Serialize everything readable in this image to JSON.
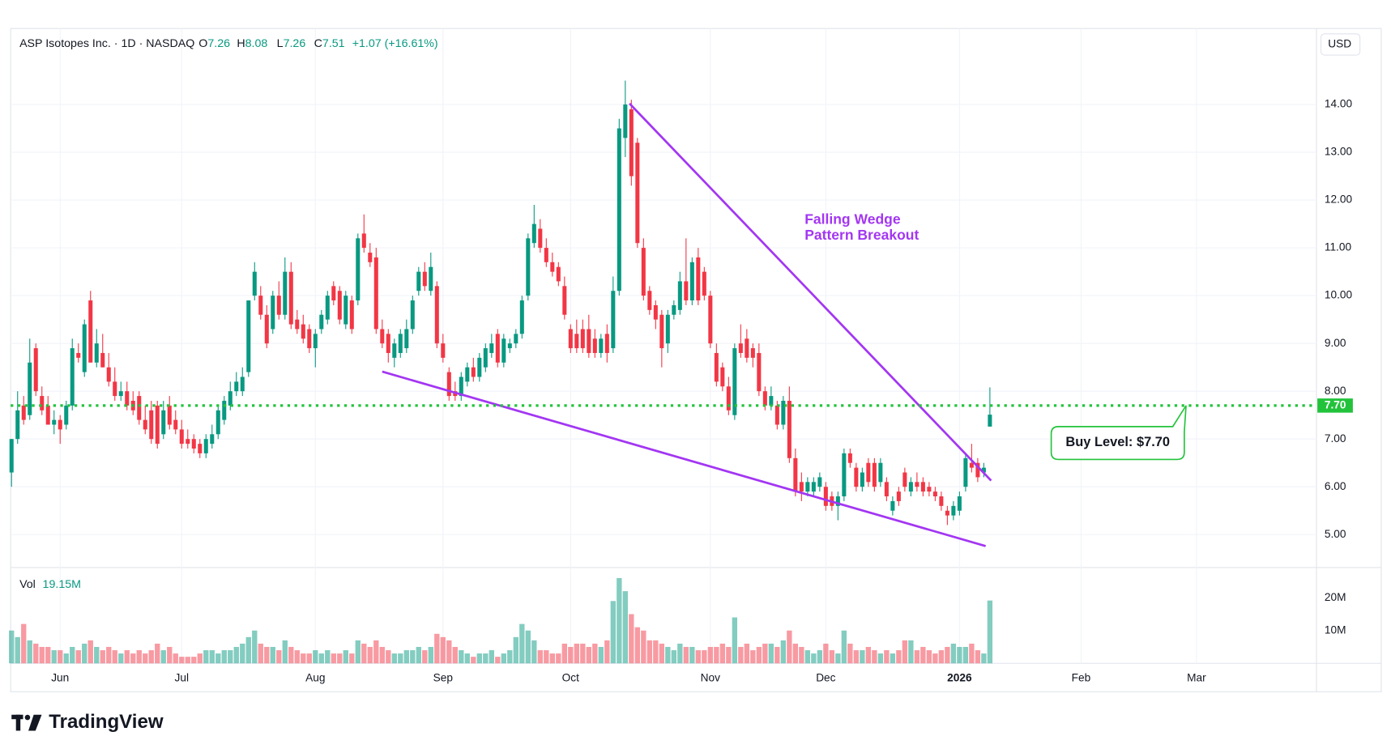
{
  "chart_data": {
    "type": "candlestick",
    "symbol_label": "ASP Isotopes Inc. · 1D · NASDAQ",
    "ohlc_labels": [
      "O",
      "H",
      "L",
      "C"
    ],
    "change_label": "+1.07 (+16.61%)",
    "currency": "USD",
    "volume_label": "Vol",
    "last_volume_label": "19.15M",
    "branding": "TradingView",
    "up_color": "#089981",
    "down_color": "#f23645",
    "categories": [
      null,
      null,
      null,
      null,
      null,
      null,
      null,
      null,
      "Jun",
      null,
      null,
      null,
      null,
      null,
      null,
      null,
      null,
      null,
      null,
      null,
      null,
      null,
      null,
      null,
      null,
      null,
      null,
      null,
      "Jul",
      null,
      null,
      null,
      null,
      null,
      null,
      null,
      null,
      null,
      null,
      null,
      null,
      null,
      null,
      null,
      null,
      null,
      null,
      null,
      null,
      null,
      "Aug",
      null,
      null,
      null,
      null,
      null,
      null,
      null,
      null,
      null,
      null,
      null,
      null,
      null,
      null,
      null,
      null,
      null,
      null,
      null,
      null,
      "Sep",
      null,
      null,
      null,
      null,
      null,
      null,
      null,
      null,
      null,
      null,
      null,
      null,
      null,
      null,
      null,
      null,
      null,
      null,
      null,
      null,
      "Oct",
      null,
      null,
      null,
      null,
      null,
      null,
      null,
      null,
      null,
      null,
      null,
      null,
      null,
      null,
      null,
      null,
      null,
      null,
      null,
      null,
      null,
      null,
      "Nov",
      null,
      null,
      null,
      null,
      null,
      null,
      null,
      null,
      null,
      null,
      null,
      null,
      null,
      null,
      null,
      null,
      null,
      null,
      "Dec",
      null,
      null,
      null,
      null,
      null,
      null,
      null,
      null,
      null,
      null,
      null,
      null,
      null,
      null,
      null,
      null,
      null,
      null,
      null,
      null,
      null,
      "2026",
      null,
      null,
      null,
      null,
      null,
      null,
      null,
      null,
      null,
      null,
      null,
      null,
      null,
      null,
      null,
      null,
      null,
      null,
      null,
      "Feb",
      null,
      null,
      null,
      null,
      null,
      null,
      null,
      null,
      null,
      null,
      null,
      null,
      null,
      null,
      null,
      null,
      null,
      null,
      "Mar"
    ],
    "open": [
      6.3,
      7.0,
      7.7,
      7.5,
      8.9,
      7.9,
      7.7,
      7.3,
      7.4,
      7.3,
      7.7,
      8.8,
      8.4,
      9.9,
      8.6,
      8.8,
      8.5,
      8.2,
      7.9,
      8.0,
      7.8,
      7.9,
      7.4,
      7.6,
      7.7,
      7.1,
      7.7,
      7.4,
      7.2,
      7.0,
      7.0,
      6.9,
      6.7,
      6.9,
      7.1,
      7.4,
      7.7,
      8.0,
      8.0,
      8.4,
      10.0,
      10.0,
      9.6,
      9.3,
      10.0,
      9.6,
      10.5,
      9.5,
      9.4,
      9.3,
      8.9,
      9.3,
      9.5,
      10.2,
      10.1,
      9.4,
      9.9,
      9.9,
      11.3,
      10.9,
      10.8,
      9.3,
      9.2,
      8.7,
      8.8,
      8.9,
      9.3,
      10.1,
      10.5,
      10.1,
      10.2,
      9.0,
      8.4,
      8.0,
      7.9,
      8.2,
      8.5,
      8.3,
      8.5,
      8.8,
      9.2,
      8.6,
      8.9,
      9.0,
      9.2,
      10.0,
      11.1,
      11.4,
      11.0,
      10.7,
      10.6,
      10.2,
      9.3,
      9.2,
      9.3,
      9.3,
      9.1,
      8.8,
      9.2,
      8.9,
      10.1,
      13.3,
      13.9,
      13.2,
      11.0,
      10.1,
      9.8,
      9.6,
      9.0,
      9.6,
      9.7,
      10.3,
      9.9,
      10.8,
      10.5,
      10.0,
      8.8,
      8.5,
      8.1,
      7.5,
      9.0,
      9.1,
      8.9,
      8.8,
      8.0,
      7.7,
      7.7,
      7.3,
      7.8,
      6.6,
      6.1,
      5.9,
      5.9,
      6.0,
      6.0,
      5.8,
      5.6,
      5.8,
      6.7,
      6.4,
      6.0,
      6.5,
      6.5,
      6.1,
      6.1,
      5.5,
      5.9,
      6.3,
      5.9,
      6.1,
      6.1,
      6.0,
      5.9,
      5.8,
      5.5,
      5.4,
      5.5,
      6.0,
      6.5,
      6.5,
      6.3,
      7.26,
      null,
      null,
      null,
      null,
      null,
      null,
      null,
      null,
      null,
      null,
      null,
      null,
      null,
      null,
      null,
      null,
      null,
      null,
      null,
      null,
      null,
      null,
      null,
      null,
      null,
      null,
      null,
      null,
      null,
      null,
      null,
      null,
      null,
      null
    ],
    "high": [
      7.0,
      8.0,
      7.9,
      9.1,
      9.0,
      8.1,
      7.9,
      7.6,
      7.5,
      7.8,
      9.1,
      9.0,
      9.5,
      10.1,
      9.3,
      9.2,
      8.8,
      8.5,
      8.2,
      8.2,
      8.0,
      8.0,
      7.7,
      7.8,
      7.8,
      7.8,
      7.9,
      7.6,
      7.4,
      7.2,
      7.1,
      7.0,
      7.1,
      7.3,
      7.7,
      7.9,
      8.2,
      8.4,
      8.5,
      9.9,
      10.7,
      10.2,
      9.8,
      10.1,
      10.3,
      10.8,
      10.7,
      9.7,
      9.6,
      9.4,
      9.3,
      9.7,
      10.1,
      10.3,
      10.2,
      10.1,
      10.0,
      11.3,
      11.7,
      11.1,
      11.0,
      9.5,
      9.3,
      9.1,
      9.3,
      9.5,
      10.0,
      10.6,
      10.7,
      10.9,
      10.3,
      9.2,
      8.5,
      8.2,
      8.4,
      8.6,
      8.7,
      8.8,
      9.0,
      9.2,
      9.3,
      9.2,
      9.1,
      9.3,
      10.0,
      11.3,
      11.9,
      11.6,
      11.2,
      10.9,
      10.7,
      10.4,
      9.4,
      9.5,
      9.5,
      9.6,
      9.3,
      9.2,
      9.4,
      10.4,
      13.7,
      14.5,
      14.1,
      13.3,
      11.2,
      10.2,
      9.9,
      9.7,
      9.7,
      9.9,
      10.5,
      11.2,
      10.8,
      11.0,
      10.6,
      10.1,
      9.0,
      8.6,
      8.3,
      9.0,
      9.4,
      9.3,
      9.0,
      9.0,
      8.1,
      8.1,
      7.8,
      7.9,
      8.1,
      6.8,
      6.3,
      6.2,
      6.2,
      6.3,
      6.1,
      5.9,
      5.9,
      6.8,
      6.8,
      6.5,
      6.4,
      6.6,
      6.6,
      6.6,
      6.2,
      5.8,
      6.0,
      6.4,
      6.2,
      6.3,
      6.2,
      6.1,
      6.0,
      5.9,
      5.6,
      5.7,
      5.9,
      6.7,
      6.9,
      6.6,
      6.5,
      8.08,
      null,
      null,
      null,
      null,
      null,
      null,
      null,
      null,
      null,
      null,
      null,
      null,
      null,
      null,
      null,
      null,
      null,
      null,
      null,
      null,
      null,
      null,
      null,
      null,
      null,
      null,
      null,
      null,
      null,
      null,
      null,
      null,
      null,
      null
    ],
    "low": [
      6.0,
      6.9,
      7.3,
      7.4,
      7.9,
      7.5,
      7.3,
      7.1,
      6.9,
      7.2,
      7.6,
      8.6,
      8.3,
      8.6,
      8.5,
      8.5,
      8.1,
      7.8,
      7.8,
      7.6,
      7.5,
      7.3,
      7.1,
      6.9,
      6.8,
      7.0,
      7.2,
      7.1,
      6.8,
      6.8,
      6.7,
      6.6,
      6.6,
      6.8,
      7.0,
      7.3,
      7.6,
      7.9,
      7.9,
      8.3,
      9.9,
      9.5,
      8.9,
      9.2,
      9.5,
      9.5,
      9.3,
      9.2,
      9.0,
      8.8,
      8.5,
      9.2,
      9.4,
      9.8,
      9.4,
      9.3,
      9.2,
      9.8,
      10.9,
      10.6,
      9.2,
      8.9,
      8.6,
      8.5,
      8.7,
      8.8,
      9.2,
      10.0,
      10.1,
      10.0,
      8.9,
      8.6,
      7.8,
      7.8,
      7.8,
      8.1,
      8.2,
      8.2,
      8.4,
      8.7,
      8.5,
      8.5,
      8.8,
      8.9,
      9.1,
      9.9,
      11.0,
      10.9,
      10.6,
      10.4,
      10.2,
      9.5,
      8.8,
      8.8,
      8.8,
      8.7,
      8.7,
      8.7,
      8.6,
      8.8,
      10.0,
      12.9,
      12.3,
      11.0,
      9.9,
      9.6,
      9.3,
      8.5,
      8.8,
      9.5,
      9.6,
      9.8,
      9.8,
      9.8,
      9.9,
      8.9,
      8.1,
      8.0,
      7.5,
      7.4,
      8.7,
      8.6,
      8.5,
      7.9,
      7.6,
      7.6,
      7.2,
      7.2,
      6.5,
      5.8,
      5.7,
      5.8,
      5.8,
      5.9,
      5.5,
      5.5,
      5.3,
      5.7,
      6.4,
      5.9,
      5.9,
      6.0,
      5.9,
      6.0,
      5.7,
      5.4,
      5.6,
      5.9,
      5.8,
      5.9,
      5.8,
      5.8,
      5.7,
      5.5,
      5.2,
      5.3,
      5.4,
      5.9,
      6.3,
      6.1,
      6.2,
      7.26,
      null,
      null,
      null,
      null,
      null,
      null,
      null,
      null,
      null,
      null,
      null,
      null,
      null,
      null,
      null,
      null,
      null,
      null,
      null,
      null,
      null,
      null,
      null,
      null,
      null,
      null,
      null,
      null,
      null,
      null,
      null,
      null,
      null,
      null
    ],
    "close": [
      7.0,
      7.6,
      7.4,
      8.6,
      8.0,
      7.6,
      7.3,
      7.4,
      7.2,
      7.7,
      8.9,
      8.7,
      9.4,
      8.6,
      9.0,
      8.5,
      8.2,
      7.9,
      8.0,
      7.7,
      7.6,
      7.4,
      7.2,
      7.0,
      6.9,
      7.6,
      7.3,
      7.2,
      6.9,
      6.9,
      6.8,
      6.7,
      7.0,
      7.1,
      7.6,
      7.8,
      8.0,
      8.2,
      8.3,
      9.9,
      10.5,
      9.6,
      9.0,
      10.0,
      9.6,
      10.5,
      9.4,
      9.3,
      9.1,
      8.9,
      9.2,
      9.6,
      10.0,
      9.9,
      9.5,
      10.0,
      9.3,
      11.2,
      11.0,
      10.7,
      9.3,
      9.0,
      8.8,
      9.0,
      9.2,
      9.3,
      9.9,
      10.5,
      10.2,
      10.6,
      9.0,
      8.7,
      7.9,
      7.9,
      8.3,
      8.5,
      8.3,
      8.7,
      8.9,
      9.0,
      8.6,
      9.1,
      9.0,
      9.2,
      9.9,
      11.2,
      11.5,
      11.0,
      10.7,
      10.5,
      10.3,
      9.6,
      8.9,
      8.9,
      8.9,
      8.8,
      8.8,
      9.1,
      8.8,
      10.1,
      13.5,
      14.0,
      12.5,
      11.1,
      10.0,
      9.7,
      9.5,
      8.9,
      9.6,
      9.8,
      10.3,
      9.9,
      10.7,
      9.9,
      10.0,
      9.0,
      8.2,
      8.1,
      7.6,
      8.9,
      8.8,
      8.7,
      8.7,
      8.0,
      7.7,
      7.9,
      7.3,
      7.8,
      6.6,
      5.9,
      5.9,
      6.1,
      6.1,
      6.2,
      5.6,
      5.6,
      5.8,
      6.7,
      6.5,
      6.0,
      6.3,
      6.1,
      6.0,
      6.5,
      5.8,
      5.7,
      5.7,
      6.0,
      6.1,
      6.0,
      5.9,
      5.9,
      5.8,
      5.6,
      5.4,
      5.6,
      5.8,
      6.6,
      6.4,
      6.2,
      6.4,
      7.51,
      null,
      null,
      null,
      null,
      null,
      null,
      null,
      null,
      null,
      null,
      null,
      null,
      null,
      null,
      null,
      null,
      null,
      null,
      null,
      null,
      null,
      null,
      null,
      null,
      null,
      null,
      null,
      null,
      null,
      null,
      null,
      null,
      null,
      null
    ],
    "volume": [
      10000000,
      8000000,
      12000000,
      7000000,
      6000000,
      5000000,
      5000000,
      4000000,
      4000000,
      3000000,
      5000000,
      4000000,
      6000000,
      7000000,
      5000000,
      4000000,
      5000000,
      4000000,
      3000000,
      4000000,
      3000000,
      4000000,
      3000000,
      4000000,
      6000000,
      4000000,
      5000000,
      3000000,
      2000000,
      2000000,
      2000000,
      3000000,
      4000000,
      4000000,
      3000000,
      4000000,
      4000000,
      5000000,
      6000000,
      8000000,
      10000000,
      6000000,
      5000000,
      5000000,
      4000000,
      7000000,
      5000000,
      4000000,
      3000000,
      3000000,
      4000000,
      3000000,
      4000000,
      3000000,
      3000000,
      4000000,
      3000000,
      7000000,
      6000000,
      5000000,
      7000000,
      5000000,
      4000000,
      3000000,
      3000000,
      4000000,
      4000000,
      5000000,
      4000000,
      5000000,
      9000000,
      8000000,
      7000000,
      5000000,
      4000000,
      3000000,
      2000000,
      3000000,
      3000000,
      4000000,
      2000000,
      3000000,
      4000000,
      8000000,
      12000000,
      10000000,
      7000000,
      4000000,
      4000000,
      3000000,
      3000000,
      6000000,
      5000000,
      6000000,
      6000000,
      5000000,
      6000000,
      5000000,
      7000000,
      19000000,
      26000000,
      22000000,
      15000000,
      11000000,
      10000000,
      7000000,
      7000000,
      6000000,
      5000000,
      4000000,
      6000000,
      5000000,
      5000000,
      4000000,
      4000000,
      5000000,
      5000000,
      6000000,
      5000000,
      14000000,
      5000000,
      6000000,
      4000000,
      5000000,
      6000000,
      6000000,
      5000000,
      7000000,
      10000000,
      6000000,
      5000000,
      4000000,
      3000000,
      4000000,
      6000000,
      4000000,
      3000000,
      10000000,
      6000000,
      4000000,
      4000000,
      5000000,
      4000000,
      3000000,
      4000000,
      3000000,
      4000000,
      7000000,
      7000000,
      4000000,
      5000000,
      4000000,
      3000000,
      4000000,
      5000000,
      6000000,
      5000000,
      5000000,
      6000000,
      4000000,
      3000000,
      19150000,
      null,
      null,
      null,
      null,
      null,
      null,
      null,
      null,
      null,
      null,
      null,
      null,
      null,
      null,
      null,
      null,
      null,
      null,
      null,
      null,
      null,
      null,
      null,
      null,
      null,
      null,
      null,
      null,
      null,
      null,
      null,
      null,
      null,
      null
    ],
    "ylim": [
      4.31,
      15.59
    ],
    "yticks": [
      {
        "value": 5,
        "label": "5.00"
      },
      {
        "value": 6,
        "label": "6.00"
      },
      {
        "value": 7,
        "label": "7.00"
      },
      {
        "value": 8,
        "label": "8.00"
      },
      {
        "value": 9,
        "label": "9.00"
      },
      {
        "value": 10,
        "label": "10.00"
      },
      {
        "value": 11,
        "label": "11.00"
      },
      {
        "value": 12,
        "label": "12.00"
      },
      {
        "value": 13,
        "label": "13.00"
      },
      {
        "value": 14,
        "label": "14.00"
      }
    ],
    "volume_ylim": [
      0,
      29200000
    ],
    "volume_ticks": [
      {
        "value": 10000000,
        "label": "10M"
      },
      {
        "value": 20000000,
        "label": "20M"
      }
    ],
    "grid": true,
    "buy_level": {
      "value": 7.7,
      "label": "7.70",
      "color": "#22c33b",
      "annotation": "Buy Level: $7.70"
    },
    "wedge_annotation": [
      "Falling Wedge",
      "Pattern Breakout"
    ],
    "trendlines": [
      {
        "x": [
          101.7,
          161.2
        ],
        "y": [
          14.02,
          6.13
        ],
        "color": "#a336f2"
      },
      {
        "x": [
          61,
          160.3
        ],
        "y": [
          8.41,
          4.76
        ],
        "color": "#a336f2"
      }
    ]
  }
}
